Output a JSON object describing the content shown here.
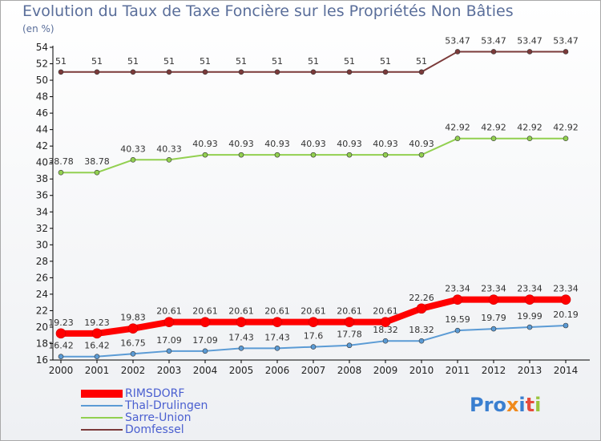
{
  "title": "Evolution du Taux de Taxe Foncière sur les Propriétés Non Bâties",
  "unit_label": "(en %)",
  "logo": {
    "text": [
      "P",
      "r",
      "o",
      "x",
      "i",
      "t",
      "i"
    ],
    "colors": [
      "#3a7fd0",
      "#3a7fd0",
      "#3a7fd0",
      "#f08a1c",
      "#3a7fd0",
      "#e64b3c",
      "#9bc53d"
    ]
  },
  "chart_data": {
    "type": "line",
    "x": [
      "2000",
      "2001",
      "2002",
      "2003",
      "2004",
      "2005",
      "2006",
      "2007",
      "2008",
      "2009",
      "2010",
      "2011",
      "2012",
      "2013",
      "2014"
    ],
    "ylim": [
      16,
      54
    ],
    "yticks": [
      16,
      18,
      20,
      22,
      24,
      26,
      28,
      30,
      32,
      34,
      36,
      38,
      40,
      42,
      44,
      46,
      48,
      50,
      52,
      54
    ],
    "grid": false,
    "legend_position": "bottom-left",
    "series": [
      {
        "name": "RIMSDORF",
        "color": "#ff0000",
        "width": 8,
        "values": [
          19.23,
          19.23,
          19.83,
          20.61,
          20.61,
          20.61,
          20.61,
          20.61,
          20.61,
          20.61,
          22.26,
          23.34,
          23.34,
          23.34,
          23.34
        ],
        "labels": [
          "19.23",
          "19.23",
          "19.83",
          "20.61",
          "20.61",
          "20.61",
          "20.61",
          "20.61",
          "20.61",
          "20.61",
          "22.26",
          "23.34",
          "23.34",
          "23.34",
          "23.34"
        ]
      },
      {
        "name": "Thal-Drulingen",
        "color": "#5b9bd5",
        "width": 2,
        "values": [
          16.42,
          16.42,
          16.75,
          17.09,
          17.09,
          17.43,
          17.43,
          17.6,
          17.78,
          18.32,
          18.32,
          19.59,
          19.79,
          19.99,
          20.19
        ],
        "labels": [
          "16.42",
          "16.42",
          "16.75",
          "17.09",
          "17.09",
          "17.43",
          "17.43",
          "17.6",
          "17.78",
          "18.32",
          "18.32",
          "19.59",
          "19.79",
          "19.99",
          "20.19"
        ]
      },
      {
        "name": "Sarre-Union",
        "color": "#92d050",
        "width": 2,
        "values": [
          38.78,
          38.78,
          40.33,
          40.33,
          40.93,
          40.93,
          40.93,
          40.93,
          40.93,
          40.93,
          40.93,
          42.92,
          42.92,
          42.92,
          42.92
        ],
        "labels": [
          "38.78",
          "38.78",
          "40.33",
          "40.33",
          "40.93",
          "40.93",
          "40.93",
          "40.93",
          "40.93",
          "40.93",
          "40.93",
          "42.92",
          "42.92",
          "42.92",
          "42.92"
        ]
      },
      {
        "name": "Domfessel",
        "color": "#7b3a3a",
        "width": 2,
        "values": [
          51,
          51,
          51,
          51,
          51,
          51,
          51,
          51,
          51,
          51,
          51,
          53.47,
          53.47,
          53.47,
          53.47
        ],
        "labels": [
          "51",
          "51",
          "51",
          "51",
          "51",
          "51",
          "51",
          "51",
          "51",
          "51",
          "51",
          "53.47",
          "53.47",
          "53.47",
          "53.47"
        ]
      }
    ]
  }
}
